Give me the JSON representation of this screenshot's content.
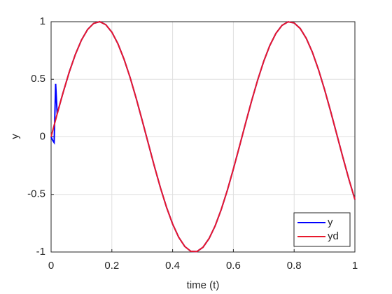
{
  "chart_data": {
    "type": "line",
    "xlabel": "time (t)",
    "ylabel": "y",
    "x": [
      0,
      0.005,
      0.01,
      0.015,
      0.02,
      0.025,
      0.03,
      0.04,
      0.06,
      0.08,
      0.1,
      0.12,
      0.14,
      0.16,
      0.18,
      0.2,
      0.22,
      0.24,
      0.26,
      0.28,
      0.3,
      0.32,
      0.34,
      0.36,
      0.38,
      0.4,
      0.42,
      0.44,
      0.46,
      0.48,
      0.5,
      0.52,
      0.54,
      0.56,
      0.58,
      0.6,
      0.62,
      0.64,
      0.66,
      0.68,
      0.7,
      0.72,
      0.74,
      0.76,
      0.78,
      0.8,
      0.82,
      0.84,
      0.86,
      0.88,
      0.9,
      0.92,
      0.94,
      0.96,
      0.98,
      1
    ],
    "series": [
      {
        "name": "y",
        "color": "#0000ff",
        "values": [
          0,
          -0.03,
          -0.05,
          0.46,
          0.2,
          0.247,
          0.296,
          0.389,
          0.565,
          0.717,
          0.841,
          0.932,
          0.985,
          1.0,
          0.974,
          0.909,
          0.808,
          0.675,
          0.516,
          0.335,
          0.141,
          -0.058,
          -0.256,
          -0.443,
          -0.612,
          -0.757,
          -0.872,
          -0.952,
          -0.994,
          -0.996,
          -0.959,
          -0.883,
          -0.773,
          -0.631,
          -0.465,
          -0.279,
          -0.083,
          0.117,
          0.312,
          0.494,
          0.657,
          0.794,
          0.899,
          0.968,
          0.999,
          0.989,
          0.941,
          0.855,
          0.735,
          0.585,
          0.412,
          0.223,
          0.025,
          -0.174,
          -0.366,
          -0.544
        ]
      },
      {
        "name": "yd",
        "color": "#e8192c",
        "values": [
          0,
          0.05,
          0.1,
          0.149,
          0.199,
          0.247,
          0.296,
          0.389,
          0.565,
          0.717,
          0.841,
          0.932,
          0.985,
          1.0,
          0.974,
          0.909,
          0.808,
          0.675,
          0.516,
          0.335,
          0.141,
          -0.058,
          -0.256,
          -0.443,
          -0.612,
          -0.757,
          -0.872,
          -0.952,
          -0.994,
          -0.996,
          -0.959,
          -0.883,
          -0.773,
          -0.631,
          -0.465,
          -0.279,
          -0.083,
          0.117,
          0.312,
          0.494,
          0.657,
          0.794,
          0.899,
          0.968,
          0.999,
          0.989,
          0.941,
          0.855,
          0.735,
          0.585,
          0.412,
          0.223,
          0.025,
          -0.174,
          -0.366,
          -0.544
        ]
      }
    ],
    "xlim": [
      0,
      1
    ],
    "xticks": [
      0,
      0.2,
      0.4,
      0.6,
      0.8,
      1
    ],
    "ylim": [
      -1,
      1
    ],
    "yticks": [
      -1,
      -0.5,
      0,
      0.5,
      1
    ],
    "grid": true,
    "legend": "lower right"
  }
}
